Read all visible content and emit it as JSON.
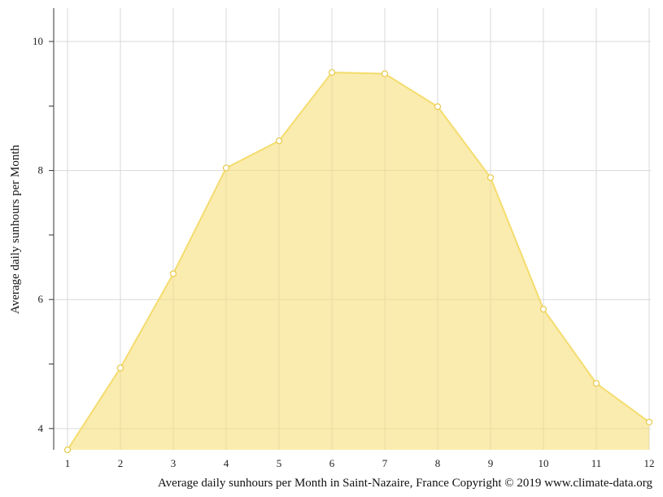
{
  "chart_data": {
    "type": "area",
    "x": [
      1,
      2,
      3,
      4,
      5,
      6,
      7,
      8,
      9,
      10,
      11,
      12
    ],
    "categories": [
      "1",
      "2",
      "3",
      "4",
      "5",
      "6",
      "7",
      "8",
      "9",
      "10",
      "11",
      "12"
    ],
    "series": [
      {
        "values": [
          3.67,
          4.94,
          6.4,
          8.04,
          8.46,
          9.52,
          9.5,
          8.99,
          7.89,
          5.85,
          4.7,
          4.1
        ]
      }
    ],
    "ylabel": "Average daily sunhours per Month",
    "caption": "Average daily sunhours per Month in Saint-Nazaire, France Copyright © 2019 www.climate-data.org",
    "ylim": [
      3.67,
      10.5
    ],
    "yticks": [
      4,
      6,
      8,
      10
    ],
    "yticks_minor": [
      5,
      7,
      9
    ],
    "grid": true,
    "colors": {
      "fill": "#f7df7a",
      "line": "#f4dc6e",
      "marker_stroke": "#e8c94a",
      "grid": "#d9d9d9",
      "axis": "#333333"
    }
  }
}
